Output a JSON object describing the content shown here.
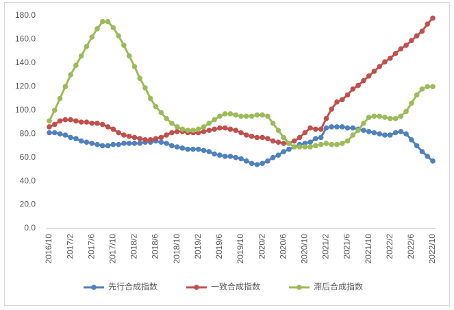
{
  "chart_data": {
    "type": "line",
    "categories": [
      "2016/10",
      null,
      null,
      null,
      "2017/2",
      null,
      null,
      null,
      "2017/6",
      null,
      null,
      null,
      "2017/10",
      null,
      null,
      null,
      "2018/2",
      null,
      null,
      null,
      "2018/6",
      null,
      null,
      null,
      "2018/10",
      null,
      null,
      null,
      "2019/2",
      null,
      null,
      null,
      "2019/6",
      null,
      null,
      null,
      "2019/10",
      null,
      null,
      null,
      "2020/2",
      null,
      null,
      null,
      "2020/6",
      null,
      null,
      null,
      "2020/10",
      null,
      null,
      null,
      "2021/2",
      null,
      null,
      null,
      "2021/6",
      null,
      null,
      null,
      "2021/10",
      null,
      null,
      null,
      "2022/2",
      null,
      null,
      null,
      "2022/6",
      null,
      null,
      null,
      "2022/10"
    ],
    "series": [
      {
        "name": "先行合成指数",
        "color": "#4f81bd",
        "values": [
          81,
          81,
          80,
          79,
          77,
          76,
          74,
          73,
          72,
          71,
          70,
          70,
          71,
          71,
          72,
          72,
          72,
          72,
          73,
          73,
          74,
          73,
          72,
          70,
          69,
          68,
          67,
          67,
          67,
          66,
          65,
          63,
          62,
          61,
          61,
          60,
          59,
          57,
          55,
          54,
          55,
          57,
          60,
          62,
          65,
          67,
          69,
          71,
          72,
          73,
          76,
          77,
          85,
          86,
          86,
          86,
          85,
          85,
          84,
          83,
          82,
          81,
          80,
          79,
          79,
          81,
          82,
          80,
          75,
          70,
          65,
          61,
          57
        ]
      },
      {
        "name": "一致合成指数",
        "color": "#c0504d",
        "values": [
          86,
          88,
          91,
          92,
          92,
          91,
          90,
          90,
          89,
          89,
          88,
          86,
          84,
          81,
          79,
          78,
          77,
          76,
          75,
          75,
          76,
          77,
          79,
          81,
          82,
          82,
          81,
          81,
          81,
          82,
          83,
          84,
          85,
          85,
          84,
          83,
          81,
          79,
          78,
          77,
          77,
          76,
          74,
          73,
          72,
          72,
          74,
          77,
          81,
          85,
          84,
          84,
          93,
          101,
          107,
          109,
          113,
          118,
          121,
          125,
          129,
          133,
          137,
          141,
          144,
          148,
          152,
          155,
          159,
          163,
          167,
          173,
          178
        ]
      },
      {
        "name": "滞后合成指数",
        "color": "#9bbb59",
        "values": [
          91,
          100,
          110,
          120,
          130,
          138,
          146,
          154,
          162,
          169,
          175,
          175,
          170,
          163,
          155,
          146,
          137,
          127,
          119,
          110,
          103,
          98,
          93,
          89,
          86,
          84,
          83,
          83,
          84,
          86,
          89,
          92,
          95,
          97,
          97,
          96,
          95,
          95,
          95,
          96,
          96,
          95,
          89,
          83,
          77,
          72,
          69,
          69,
          69,
          69,
          70,
          71,
          72,
          71,
          71,
          72,
          74,
          79,
          83,
          89,
          94,
          95,
          95,
          94,
          93,
          93,
          95,
          99,
          106,
          113,
          118,
          120,
          120
        ]
      }
    ],
    "ylim": [
      0,
      180
    ],
    "yticks": [
      {
        "value": 0,
        "label": "0.0"
      },
      {
        "value": 20,
        "label": "20.0"
      },
      {
        "value": 40,
        "label": "40.0"
      },
      {
        "value": 60,
        "label": "60.0"
      },
      {
        "value": 80,
        "label": "80.0"
      },
      {
        "value": 100,
        "label": "100.0"
      },
      {
        "value": 120,
        "label": "120.0"
      },
      {
        "value": 140,
        "label": "140.0"
      },
      {
        "value": 160,
        "label": "160.0"
      },
      {
        "value": 180,
        "label": "180.0"
      }
    ],
    "grid": false,
    "legend": "bottom"
  }
}
